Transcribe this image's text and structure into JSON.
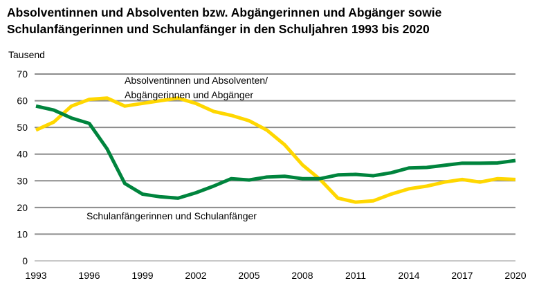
{
  "chart_data": {
    "type": "line",
    "title_line1": "Absolventinnen und Absolventen bzw. Abgängerinnen und Abgänger sowie",
    "title_line2": "Schulanfängerinnen und Schulanfänger in den Schuljahren 1993 bis 2020",
    "ylabel": "Tausend",
    "xlabel": "",
    "ylim": [
      0,
      70
    ],
    "xlim": [
      1993,
      2020
    ],
    "yticks": [
      "0",
      "10",
      "20",
      "30",
      "40",
      "50",
      "60",
      "70"
    ],
    "xticks": [
      "1993",
      "1996",
      "1999",
      "2002",
      "2005",
      "2008",
      "2011",
      "2014",
      "2017",
      "2020"
    ],
    "grid": "horizontal",
    "x": [
      1993,
      1994,
      1995,
      1996,
      1997,
      1998,
      1999,
      2000,
      2001,
      2002,
      2003,
      2004,
      2005,
      2006,
      2007,
      2008,
      2009,
      2010,
      2011,
      2012,
      2013,
      2014,
      2015,
      2016,
      2017,
      2018,
      2019,
      2020
    ],
    "series": [
      {
        "name": "Absolventinnen und Absolventen/ Abgängerinnen und Abgänger",
        "label_lines": [
          "Absolventinnen und Absolventen/",
          "Abgängerinnen und Abgänger"
        ],
        "color": "#FFD700",
        "values": [
          49,
          52,
          58,
          60.5,
          61,
          58,
          59,
          60,
          61,
          59,
          56,
          54.5,
          52.5,
          49,
          43.5,
          36,
          30.5,
          23.5,
          22,
          22.5,
          25,
          27,
          28,
          29.5,
          30.5,
          29.5,
          30.8,
          30.5
        ]
      },
      {
        "name": "Schulanfängerinnen und Schulanfänger",
        "label_lines": [
          "Schulanfängerinnen und Schulanfänger"
        ],
        "color": "#00843D",
        "values": [
          58,
          56.5,
          53.5,
          51.5,
          42,
          29,
          25,
          24,
          23.5,
          25.5,
          28,
          30.8,
          30.3,
          31.4,
          31.7,
          30.8,
          30.8,
          32.2,
          32.4,
          31.9,
          33,
          34.8,
          35,
          35.8,
          36.6,
          36.6,
          36.7,
          37.6
        ]
      }
    ]
  }
}
